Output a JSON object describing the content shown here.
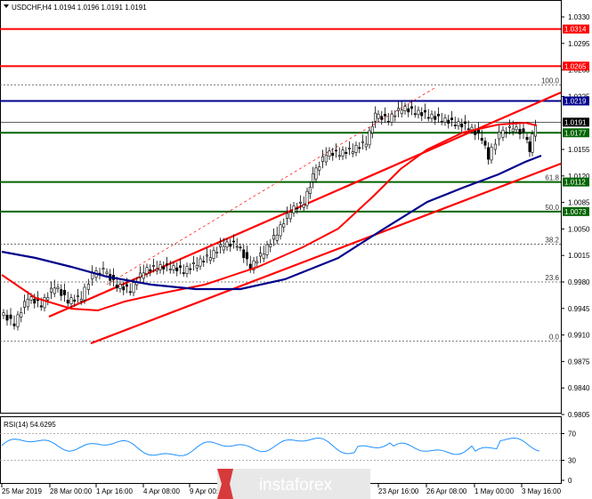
{
  "header": {
    "symbol_line": "USDCHF,H4  1.0194 1.0196 1.0191 1.0191"
  },
  "price_axis": {
    "ticks": [
      "1.0330",
      "1.0295",
      "1.0260",
      "1.0225",
      "1.0155",
      "1.0120",
      "1.0085",
      "1.0050",
      "1.0015",
      "0.9980",
      "0.9945",
      "0.9910",
      "0.9875",
      "0.9840",
      "0.9805"
    ],
    "tick_values": [
      1.033,
      1.0295,
      1.026,
      1.0225,
      1.0155,
      1.012,
      1.0085,
      1.005,
      1.0015,
      0.998,
      0.9945,
      0.991,
      0.9875,
      0.984,
      0.9805
    ],
    "range": [
      0.9795,
      1.035
    ]
  },
  "horizontal_levels": [
    {
      "label": "1.0314",
      "value": 1.0314,
      "color": "#ff0000"
    },
    {
      "label": "1.0265",
      "value": 1.0265,
      "color": "#ff0000"
    },
    {
      "label": "1.0219",
      "value": 1.0219,
      "color": "#00008b"
    },
    {
      "label": "1.0191",
      "value": 1.0191,
      "color": "#000000"
    },
    {
      "label": "1.0177",
      "value": 1.0177,
      "color": "#006400"
    },
    {
      "label": "1.0112",
      "value": 1.0112,
      "color": "#006400"
    },
    {
      "label": "1.0073",
      "value": 1.0073,
      "color": "#006400"
    }
  ],
  "fibonacci_levels": [
    {
      "label": "100.0",
      "value": 1.024
    },
    {
      "label": "61.8",
      "value": 1.0112
    },
    {
      "label": "50.0",
      "value": 1.0073
    },
    {
      "label": "38.2",
      "value": 1.003
    },
    {
      "label": "23.6",
      "value": 0.998
    },
    {
      "label": "0.0",
      "value": 0.9902
    }
  ],
  "rsi": {
    "title": "RSI(14) 54.6295",
    "levels": [
      "70",
      "30",
      "0"
    ],
    "level_values": [
      70,
      30,
      0
    ],
    "color": "#1e90ff"
  },
  "time_axis": {
    "labels": [
      "25 Mar 2019",
      "28 Mar 00:00",
      "1 Apr 16:00",
      "4 Apr 08:00",
      "9 Apr 00:00",
      "23 Apr 16:00",
      "26 Apr 08:00",
      "1 May 00:00",
      "3 May 16:00"
    ]
  },
  "watermark": {
    "text": "instaforex"
  },
  "colors": {
    "trend": "#ff0000",
    "ma_red": "#ff0000",
    "ma_blue": "#00008b",
    "support_green": "#006400",
    "watermark_bg": "#e8e8e8",
    "watermark_accent": "#d63a3a"
  }
}
